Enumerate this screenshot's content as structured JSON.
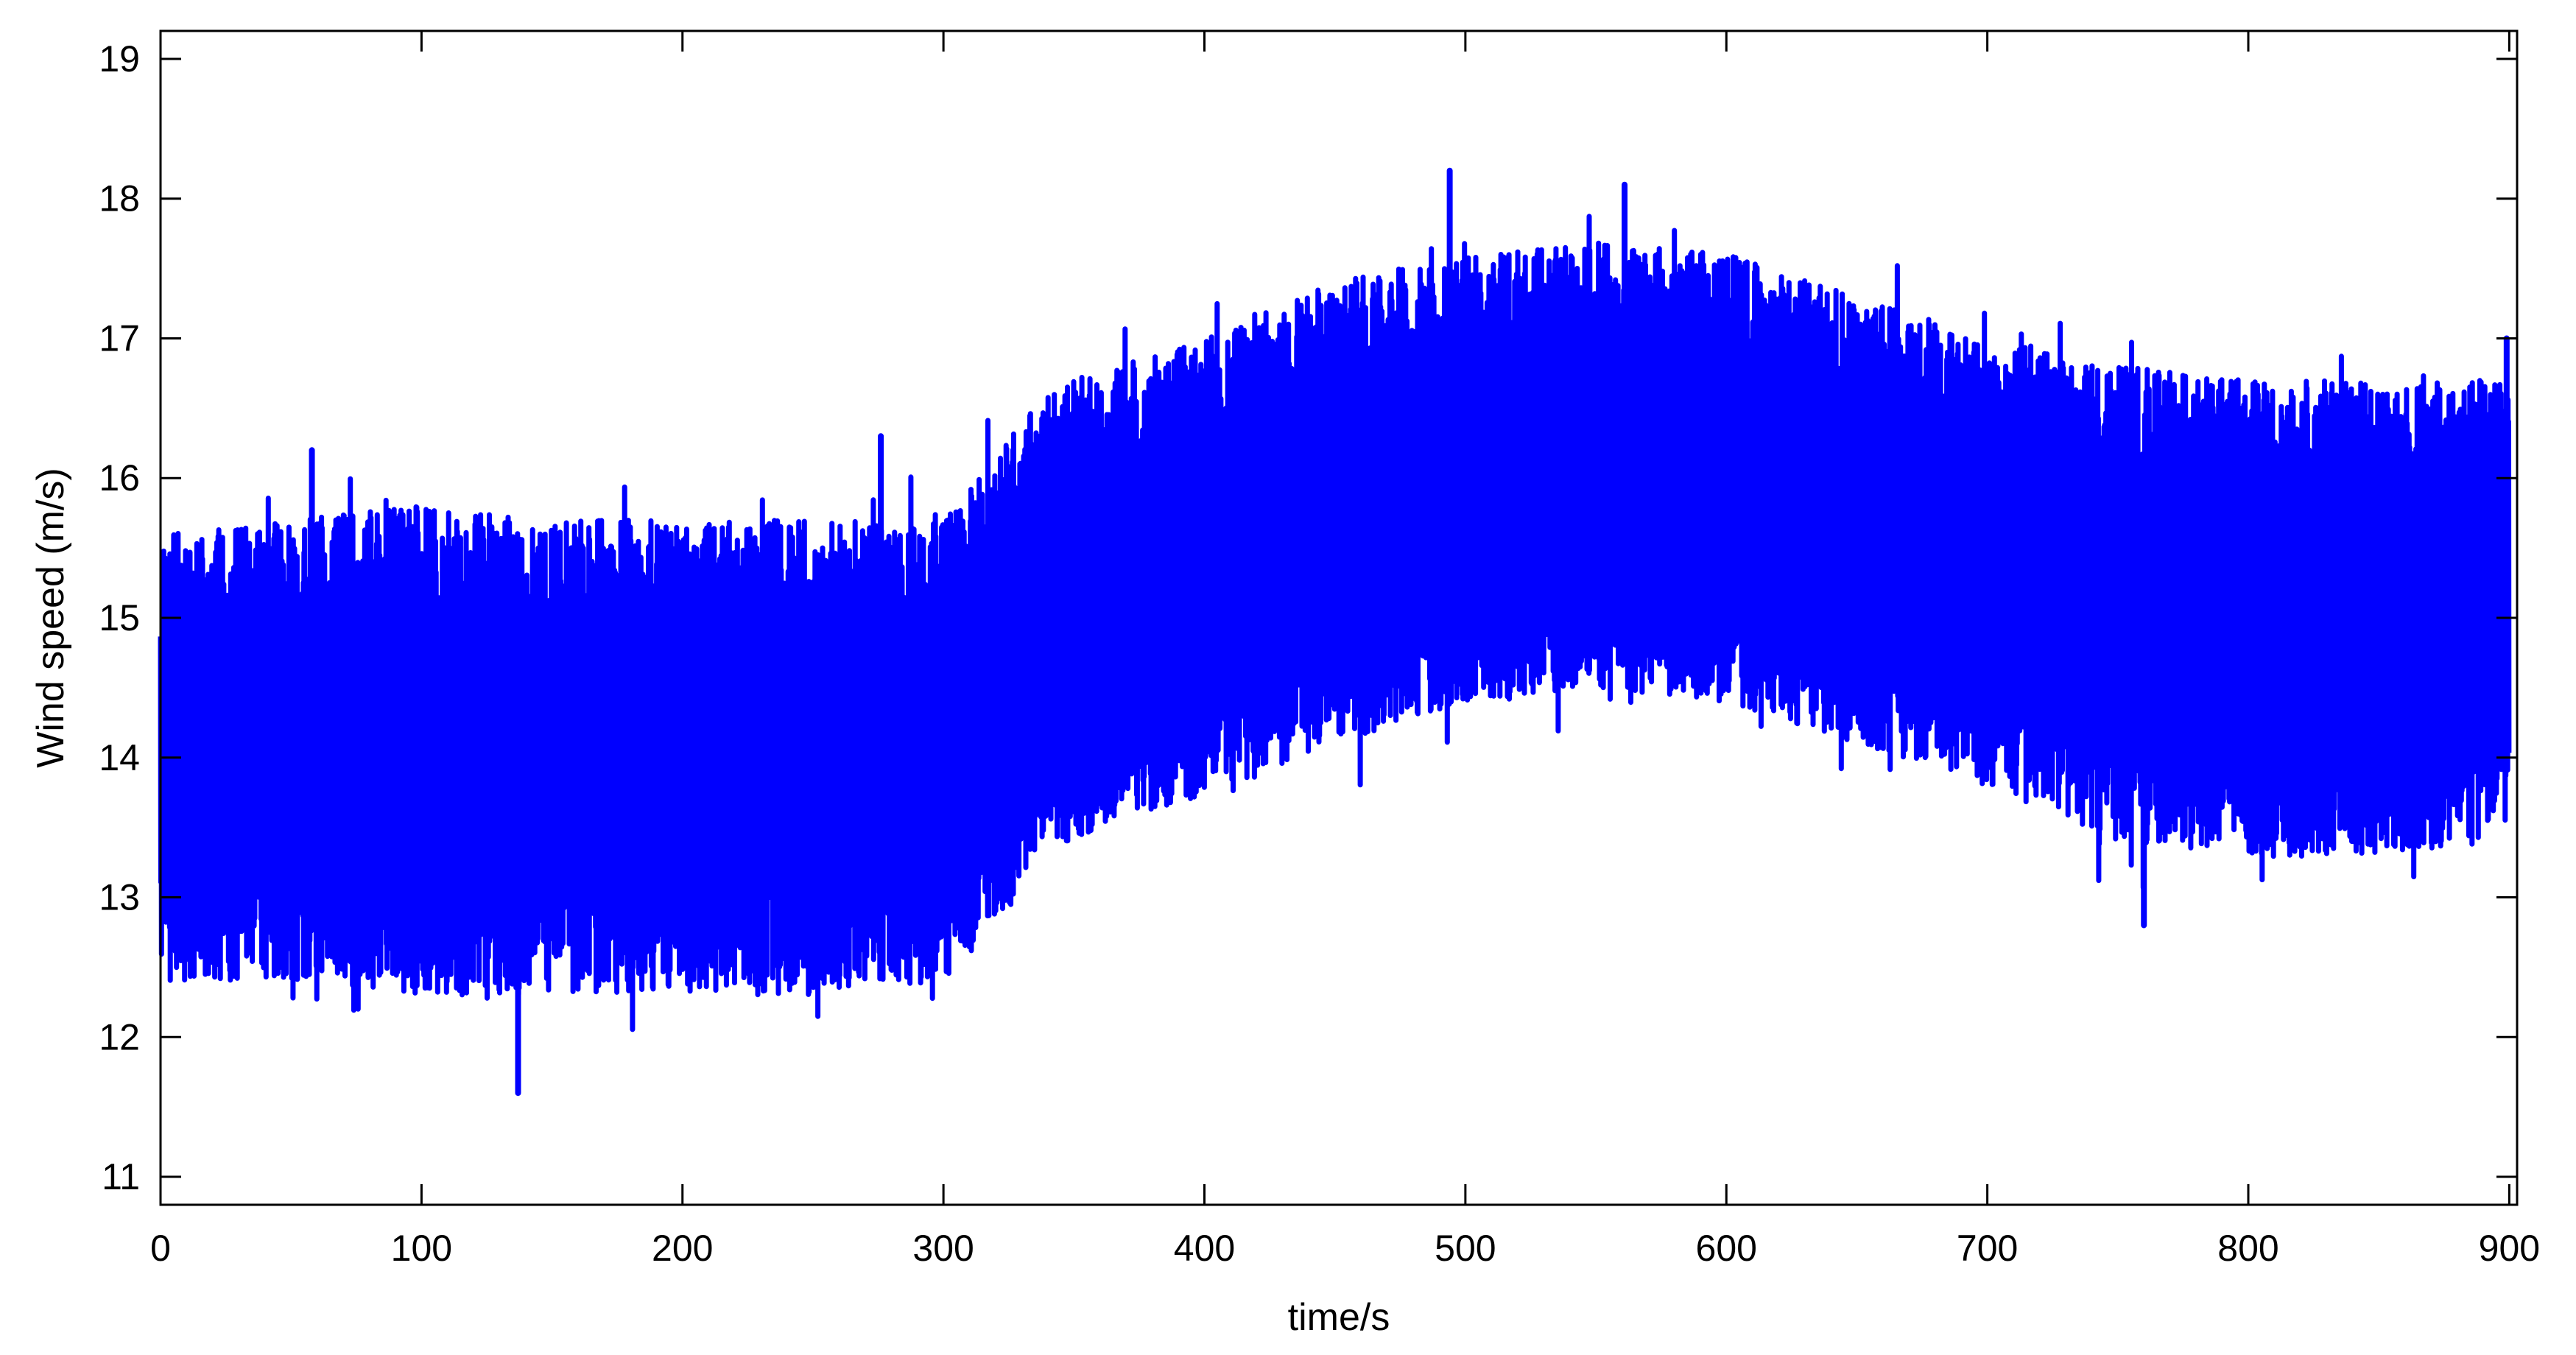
{
  "chart_data": {
    "type": "line",
    "title": "",
    "xlabel": "time/s",
    "ylabel": "Wind speed (m/s)",
    "xlim": [
      0,
      903
    ],
    "ylim": [
      10.8,
      19.2
    ],
    "xticks": [
      0,
      100,
      200,
      300,
      400,
      500,
      600,
      700,
      800,
      900
    ],
    "yticks": [
      11,
      12,
      13,
      14,
      15,
      16,
      17,
      18,
      19
    ],
    "grid": false,
    "legend": "none",
    "line_color": "#0000ff",
    "series": [
      {
        "note_envelope": "approximate band of the dense oscillating signal",
        "x": [
          0,
          50,
          100,
          150,
          200,
          250,
          300,
          320,
          340,
          360,
          400,
          450,
          500,
          550,
          600,
          650,
          700,
          750,
          800,
          850,
          900
        ],
        "upper": [
          15.6,
          15.7,
          15.8,
          15.7,
          15.7,
          15.7,
          15.7,
          16.2,
          16.6,
          16.8,
          17.0,
          17.4,
          17.6,
          17.7,
          17.6,
          17.3,
          17.0,
          16.8,
          16.7,
          16.7,
          16.7
        ],
        "lower": [
          12.4,
          12.4,
          12.3,
          12.3,
          12.3,
          12.3,
          12.4,
          12.8,
          13.3,
          13.5,
          13.7,
          14.1,
          14.4,
          14.5,
          14.4,
          14.1,
          13.8,
          13.4,
          13.3,
          13.3,
          13.4
        ],
        "peaks": [
          {
            "x": 137,
            "y": 11.6
          },
          {
            "x": 494,
            "y": 18.2
          },
          {
            "x": 561,
            "y": 18.1
          },
          {
            "x": 760,
            "y": 12.8
          },
          {
            "x": 276,
            "y": 16.3
          },
          {
            "x": 58,
            "y": 16.2
          },
          {
            "x": 899,
            "y": 17.0
          }
        ]
      }
    ]
  }
}
